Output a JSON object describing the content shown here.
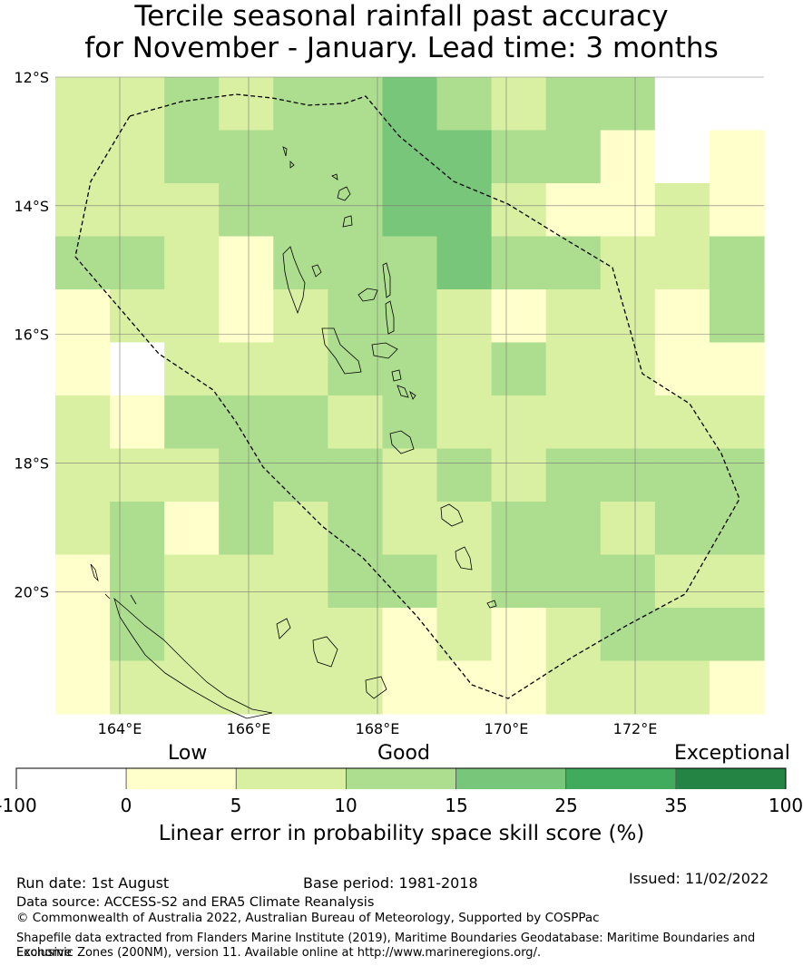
{
  "title": {
    "line1": "Tercile seasonal rainfall past accuracy",
    "line2": "for November - January. Lead time: 3 months"
  },
  "map": {
    "lat_labels": [
      "12°S",
      "14°S",
      "16°S",
      "18°S",
      "20°S"
    ],
    "lon_labels": [
      "164°E",
      "166°E",
      "168°E",
      "170°E",
      "172°E"
    ],
    "lon_range": [
      163.0,
      174.0
    ],
    "lat_range": [
      -21.9,
      -12.0
    ],
    "grid_cell_degrees": 0.8333,
    "grid_cols": 13,
    "grid_rows": 12,
    "category_grid": [
      [
        2,
        2,
        3,
        2,
        3,
        3,
        4,
        3,
        2,
        3,
        3,
        0,
        0
      ],
      [
        2,
        2,
        3,
        3,
        3,
        3,
        4,
        4,
        3,
        3,
        1,
        0,
        1
      ],
      [
        2,
        2,
        2,
        3,
        3,
        3,
        4,
        4,
        2,
        1,
        1,
        2,
        1
      ],
      [
        3,
        3,
        2,
        1,
        3,
        3,
        3,
        4,
        3,
        3,
        2,
        2,
        3
      ],
      [
        1,
        2,
        2,
        1,
        2,
        3,
        3,
        2,
        1,
        2,
        2,
        1,
        3
      ],
      [
        1,
        0,
        2,
        2,
        2,
        3,
        3,
        2,
        3,
        2,
        2,
        1,
        1
      ],
      [
        2,
        1,
        3,
        3,
        3,
        2,
        3,
        2,
        2,
        2,
        2,
        2,
        2
      ],
      [
        2,
        2,
        2,
        3,
        3,
        3,
        2,
        3,
        2,
        3,
        3,
        3,
        3
      ],
      [
        2,
        3,
        1,
        3,
        2,
        3,
        2,
        2,
        3,
        3,
        2,
        3,
        3
      ],
      [
        1,
        3,
        2,
        2,
        2,
        3,
        3,
        2,
        3,
        3,
        3,
        2,
        2
      ],
      [
        1,
        3,
        2,
        2,
        2,
        2,
        1,
        2,
        1,
        2,
        3,
        3,
        3
      ],
      [
        1,
        2,
        2,
        2,
        2,
        2,
        1,
        1,
        1,
        2,
        2,
        2,
        1
      ]
    ]
  },
  "colorbar": {
    "categories": [
      "Low",
      "Good",
      "Exceptional"
    ],
    "ticks": [
      "-100",
      "0",
      "5",
      "10",
      "15",
      "25",
      "35",
      "100"
    ],
    "bins": [
      {
        "from": -100,
        "to": 0,
        "color": "#ffffff"
      },
      {
        "from": 0,
        "to": 5,
        "color": "#ffffcc"
      },
      {
        "from": 5,
        "to": 10,
        "color": "#d9f0a3"
      },
      {
        "from": 10,
        "to": 15,
        "color": "#addd8e"
      },
      {
        "from": 15,
        "to": 25,
        "color": "#78c679"
      },
      {
        "from": 25,
        "to": 35,
        "color": "#41ab5d"
      },
      {
        "from": 35,
        "to": 100,
        "color": "#238443"
      }
    ],
    "label": "Linear error in probability space skill score (%)"
  },
  "footer": {
    "run_date": "Run date: 1st August",
    "base_period": "Base period: 1981-2018",
    "issued": "Issued: 11/02/2022",
    "data_source": "Data source: ACCESS-S2 and ERA5 Climate Reanalysis",
    "copyright": "© Commonwealth of Australia 2022, Australian Bureau of Meteorology, Supported by COSPPac",
    "shapefile_line1": "Shapefile data extracted from Flanders Marine Institute (2019), Maritime Boundaries Geodatabase: Maritime Boundaries and Exclusive",
    "shapefile_line2": "Economic Zones (200NM), version 11. Available online at http://www.marineregions.org/."
  }
}
